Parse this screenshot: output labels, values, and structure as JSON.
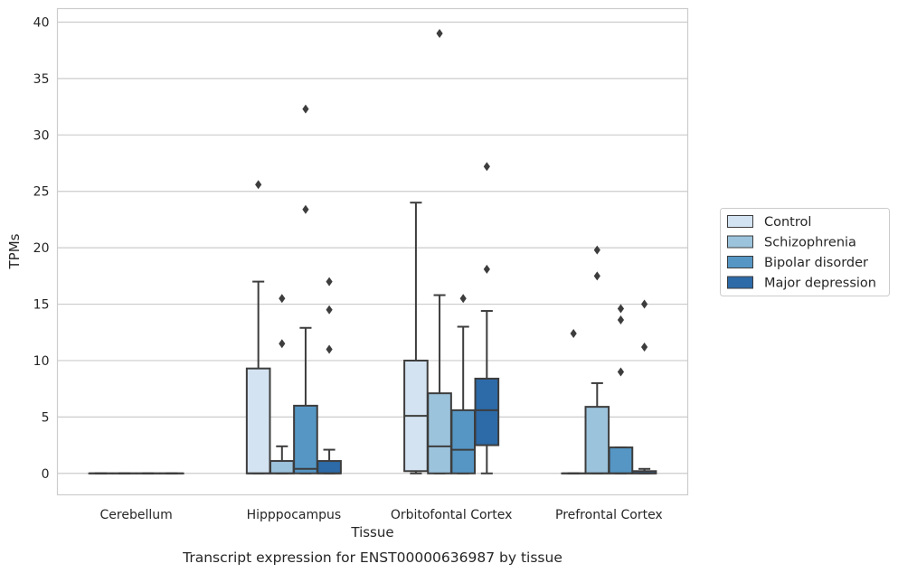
{
  "chart_data": {
    "type": "box",
    "caption": "Transcript expression for ENST00000636987 by tissue",
    "xlabel": "Tissue",
    "ylabel": "TPMs",
    "ylim": [
      -1.9,
      41.2
    ],
    "yticks": [
      0,
      5,
      10,
      15,
      20,
      25,
      30,
      35,
      40
    ],
    "grid": true,
    "legend_position": "right",
    "categories": [
      "Cerebellum",
      "Hipppocampus",
      "Orbitofontal Cortex",
      "Prefrontal Cortex"
    ],
    "series": [
      {
        "name": "Control",
        "color": "#d4e3f2",
        "boxes": [
          {
            "q1": 0,
            "median": 0,
            "q3": 0,
            "whislo": 0,
            "whishi": 0,
            "fliers": []
          },
          {
            "q1": 0,
            "median": 0,
            "q3": 9.3,
            "whislo": 0,
            "whishi": 17.0,
            "fliers": [
              25.6
            ]
          },
          {
            "q1": 0.2,
            "median": 5.1,
            "q3": 10.0,
            "whislo": 0,
            "whishi": 24.0,
            "fliers": []
          },
          {
            "q1": 0,
            "median": 0,
            "q3": 0,
            "whislo": 0,
            "whishi": 0,
            "fliers": [
              12.4
            ]
          }
        ]
      },
      {
        "name": "Schizophrenia",
        "color": "#9cc3dc",
        "boxes": [
          {
            "q1": 0,
            "median": 0,
            "q3": 0,
            "whislo": 0,
            "whishi": 0,
            "fliers": []
          },
          {
            "q1": 0,
            "median": 0,
            "q3": 1.1,
            "whislo": 0,
            "whishi": 2.4,
            "fliers": [
              11.5,
              15.5
            ]
          },
          {
            "q1": 0,
            "median": 2.4,
            "q3": 7.1,
            "whislo": 0,
            "whishi": 15.8,
            "fliers": [
              39.0
            ]
          },
          {
            "q1": 0,
            "median": 0,
            "q3": 5.9,
            "whislo": 0,
            "whishi": 8.0,
            "fliers": [
              17.5,
              19.8
            ]
          }
        ]
      },
      {
        "name": "Bipolar disorder",
        "color": "#5596c4",
        "boxes": [
          {
            "q1": 0,
            "median": 0,
            "q3": 0,
            "whislo": 0,
            "whishi": 0,
            "fliers": []
          },
          {
            "q1": 0,
            "median": 0.4,
            "q3": 6.0,
            "whislo": 0,
            "whishi": 12.9,
            "fliers": [
              23.4,
              32.3
            ]
          },
          {
            "q1": 0,
            "median": 2.1,
            "q3": 5.6,
            "whislo": 0,
            "whishi": 13.0,
            "fliers": [
              15.5
            ]
          },
          {
            "q1": 0,
            "median": 0,
            "q3": 2.3,
            "whislo": 0,
            "whishi": 2.3,
            "fliers": [
              9.0,
              13.6,
              14.6
            ]
          }
        ]
      },
      {
        "name": "Major depression",
        "color": "#2c6aa8",
        "boxes": [
          {
            "q1": 0,
            "median": 0,
            "q3": 0,
            "whislo": 0,
            "whishi": 0,
            "fliers": []
          },
          {
            "q1": 0,
            "median": 0,
            "q3": 1.1,
            "whislo": 0,
            "whishi": 2.1,
            "fliers": [
              11.0,
              14.5,
              17.0
            ]
          },
          {
            "q1": 2.5,
            "median": 5.6,
            "q3": 8.4,
            "whislo": 0,
            "whishi": 14.4,
            "fliers": [
              18.1,
              27.2
            ]
          },
          {
            "q1": 0,
            "median": 0,
            "q3": 0.2,
            "whislo": 0,
            "whishi": 0.4,
            "fliers": [
              11.2,
              15.0
            ]
          }
        ]
      }
    ]
  }
}
